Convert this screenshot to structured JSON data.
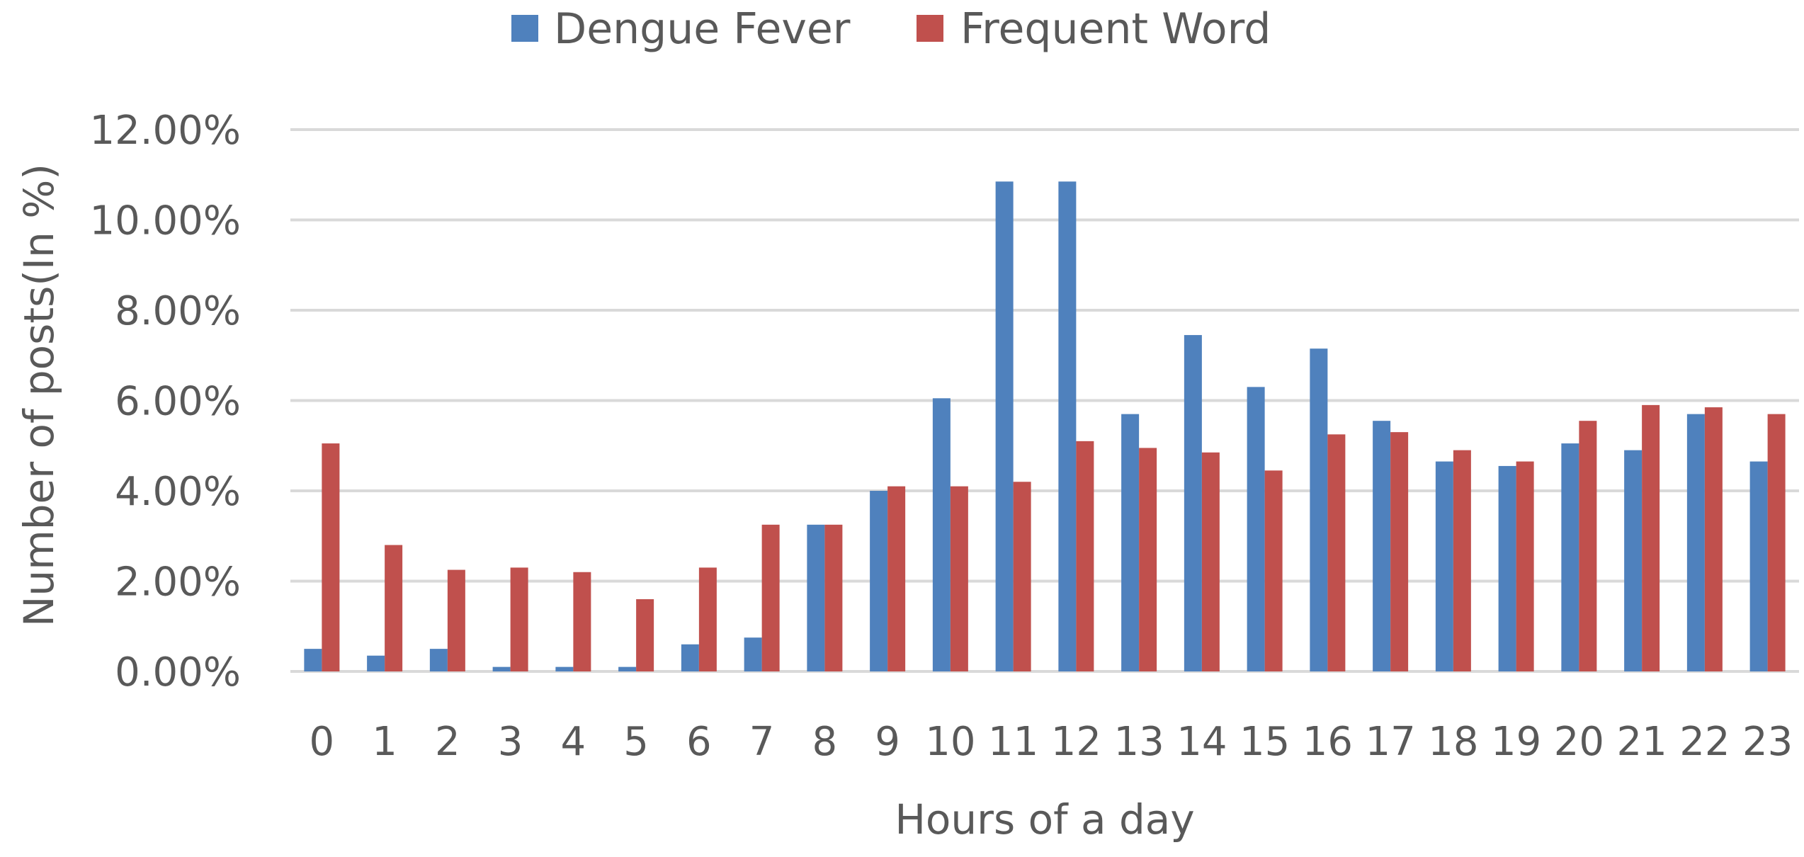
{
  "chart_data": {
    "type": "bar",
    "title": "",
    "xlabel": "Hours of a day",
    "ylabel": "Number of  posts(In %)",
    "ylim": [
      0,
      12
    ],
    "yticks": [
      "0.00%",
      "2.00%",
      "4.00%",
      "6.00%",
      "8.00%",
      "10.00%",
      "12.00%"
    ],
    "grid": true,
    "legend_position": "top",
    "categories": [
      "0",
      "1",
      "2",
      "3",
      "4",
      "5",
      "6",
      "7",
      "8",
      "9",
      "10",
      "11",
      "12",
      "13",
      "14",
      "15",
      "16",
      "17",
      "18",
      "19",
      "20",
      "21",
      "22",
      "23"
    ],
    "series": [
      {
        "name": "Dengue Fever",
        "color": "#4f81bd",
        "values": [
          0.5,
          0.35,
          0.5,
          0.1,
          0.1,
          0.1,
          0.6,
          0.75,
          3.25,
          4.0,
          6.05,
          10.85,
          10.85,
          5.7,
          7.45,
          6.3,
          7.15,
          5.55,
          4.65,
          4.55,
          5.05,
          4.9,
          5.7,
          4.65
        ]
      },
      {
        "name": "Frequent Word",
        "color": "#c0504d",
        "values": [
          5.05,
          2.8,
          2.25,
          2.3,
          2.2,
          1.6,
          2.3,
          3.25,
          3.25,
          4.1,
          4.1,
          4.2,
          5.1,
          4.95,
          4.85,
          4.45,
          5.25,
          5.3,
          4.9,
          4.65,
          5.55,
          5.9,
          5.85,
          5.7
        ]
      }
    ]
  }
}
